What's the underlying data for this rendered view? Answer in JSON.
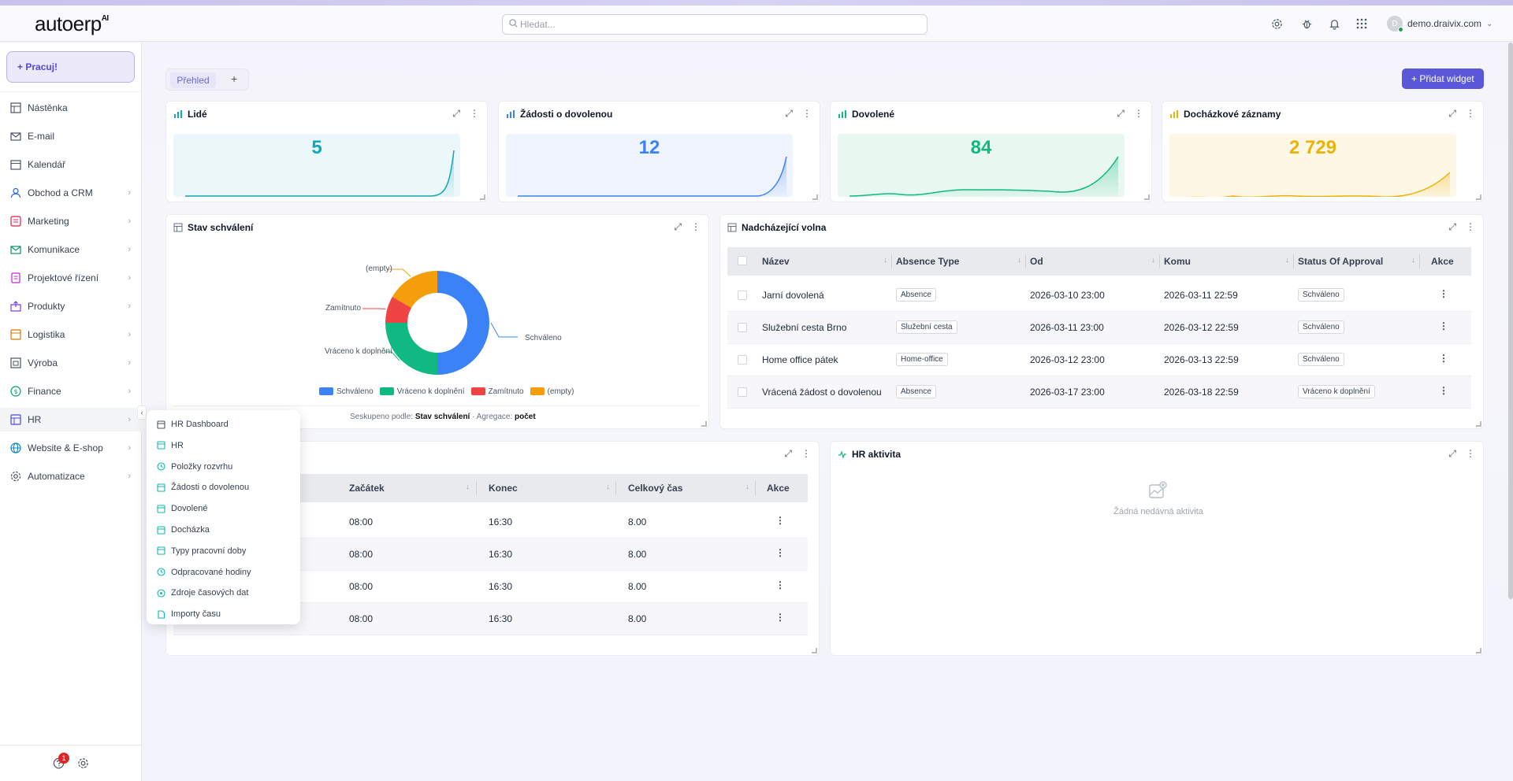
{
  "app": {
    "logo_text": "autoerp",
    "logo_suffix": "AI",
    "accent": "#5b57d9"
  },
  "header": {
    "search_placeholder": "Hledat...",
    "user": "demo.draivix.com",
    "avatar_initial": "D"
  },
  "sidebar": {
    "work_button": "+ Pracuj!",
    "items": [
      {
        "label": "Nástěnka"
      },
      {
        "label": "E-mail"
      },
      {
        "label": "Kalendář"
      },
      {
        "label": "Obchod a CRM"
      },
      {
        "label": "Marketing"
      },
      {
        "label": "Komunikace"
      },
      {
        "label": "Projektové řízení"
      },
      {
        "label": "Produkty"
      },
      {
        "label": "Logistika"
      },
      {
        "label": "Výroba"
      },
      {
        "label": "Finance"
      },
      {
        "label": "HR"
      },
      {
        "label": "Website & E-shop"
      },
      {
        "label": "Automatizace"
      }
    ],
    "help_badge": "1"
  },
  "dashboard": {
    "tab": "Přehled",
    "add_tab": "+",
    "add_widget": "+ Přidat widget"
  },
  "stats": [
    {
      "title": "Lidé",
      "value": "5",
      "color": "#15a7b6"
    },
    {
      "title": "Žádosti o dovolenou",
      "value": "12",
      "color": "#3b82f6"
    },
    {
      "title": "Dovolené",
      "value": "84",
      "color": "#10b981"
    },
    {
      "title": "Docházkové záznamy",
      "value": "2 729",
      "color": "#eab308"
    }
  ],
  "approval": {
    "title": "Stav schválení",
    "footer_prefix": "Seskupeno podle: ",
    "footer_group": "Stav schválení",
    "footer_mid": " · Agregace: ",
    "footer_agg": "počet",
    "chart_data": {
      "type": "pie",
      "categories": [
        "Schváleno",
        "Vráceno k doplnění",
        "Zamítnuto",
        "(empty)"
      ],
      "values": [
        6,
        3,
        1,
        2
      ],
      "colors": [
        "#3b82f6",
        "#10b981",
        "#ef4444",
        "#f59e0b"
      ]
    }
  },
  "upcoming": {
    "title": "Nadcházející volna",
    "columns": [
      "Název",
      "Absence Type",
      "Od",
      "Komu",
      "Status Of Approval",
      "Akce"
    ],
    "rows": [
      {
        "name": "Jarní dovolená",
        "type": "Absence",
        "from": "2026-03-10 23:00",
        "to": "2026-03-11 22:59",
        "status": "Schváleno"
      },
      {
        "name": "Služební cesta Brno",
        "type": "Služební cesta",
        "from": "2026-03-11 23:00",
        "to": "2026-03-12 22:59",
        "status": "Schváleno"
      },
      {
        "name": "Home office pátek",
        "type": "Home-office",
        "from": "2026-03-12 23:00",
        "to": "2026-03-13 22:59",
        "status": "Schváleno"
      },
      {
        "name": "Vrácená žádost o dovolenou",
        "type": "Absence",
        "from": "2026-03-17 23:00",
        "to": "2026-03-18 22:59",
        "status": "Vráceno k doplnění"
      }
    ]
  },
  "shifts": {
    "columns": [
      "Začátek",
      "Konec",
      "Celkový čas",
      "Akce"
    ],
    "rows": [
      {
        "start": "08:00",
        "end": "16:30",
        "total": "8.00"
      },
      {
        "start": "08:00",
        "end": "16:30",
        "total": "8.00"
      },
      {
        "start": "08:00",
        "end": "16:30",
        "total": "8.00"
      },
      {
        "start": "08:00",
        "end": "16:30",
        "total": "8.00"
      }
    ]
  },
  "activity": {
    "title": "HR aktivita",
    "empty": "Žádná nedávná aktivita"
  },
  "hr_menu": [
    {
      "label": "HR Dashboard"
    },
    {
      "label": "HR"
    },
    {
      "label": "Položky rozvrhu"
    },
    {
      "label": "Žádosti o dovolenou"
    },
    {
      "label": "Dovolené"
    },
    {
      "label": "Docházka"
    },
    {
      "label": "Typy pracovní doby"
    },
    {
      "label": "Odpracované hodiny"
    },
    {
      "label": "Zdroje časových dat"
    },
    {
      "label": "Importy času"
    }
  ]
}
